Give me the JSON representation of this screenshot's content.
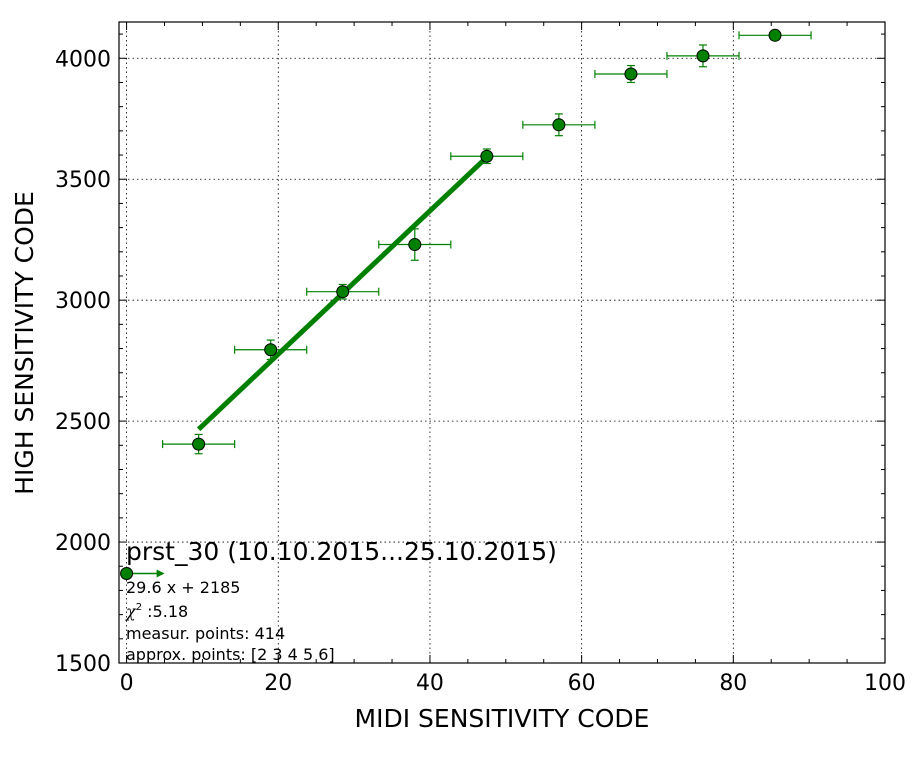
{
  "chart_data": {
    "type": "scatter",
    "title": "",
    "xlabel": "MIDI SENSITIVITY CODE",
    "ylabel": "HIGH SENSITIVITY CODE",
    "xlim": [
      -1,
      100
    ],
    "ylim": [
      1500,
      4150
    ],
    "xticks": [
      0,
      20,
      40,
      60,
      80,
      100
    ],
    "yticks": [
      1500,
      2000,
      2500,
      3000,
      3500,
      4000
    ],
    "grid": true,
    "colors": {
      "series": "#008000",
      "marker": "#008000",
      "fit": "#008000"
    },
    "series": [
      {
        "x": [
          9.5,
          19,
          28.5,
          38,
          47.5,
          57,
          66.5,
          76,
          85.5
        ],
        "y": [
          2405,
          2795,
          3035,
          3230,
          3595,
          3725,
          3935,
          4010,
          4095
        ],
        "xerr": [
          4.75,
          4.75,
          4.75,
          4.75,
          4.75,
          4.75,
          4.75,
          4.75,
          4.75
        ],
        "yerr": [
          40,
          40,
          30,
          65,
          30,
          45,
          35,
          45,
          0
        ]
      }
    ],
    "fit": {
      "x": [
        9.5,
        47.5
      ],
      "slope": 29.6,
      "intercept": 2185
    },
    "marker_point": {
      "x": 0,
      "y": 1870
    }
  },
  "annotation": {
    "title": "prst_30 (10.10.2015...25.10.2015)",
    "equation": "29.6 x + 2185",
    "chi_symbol": "χ",
    "chi_sup": "2",
    "chi_value": " :5.18",
    "measur": "measur. points: 414",
    "approx": "approx. points: [2 3 4 5 6]"
  }
}
